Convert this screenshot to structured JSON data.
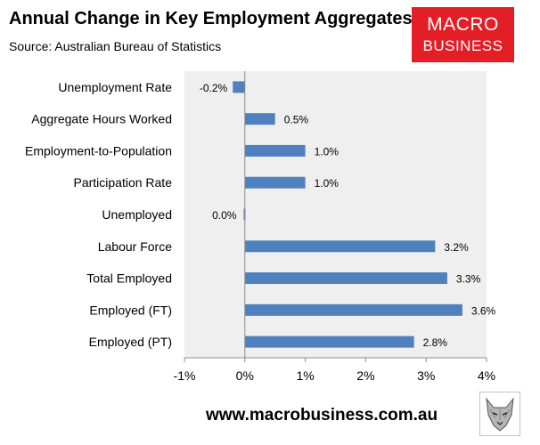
{
  "header": {
    "title": "Annual Change in Key Employment Aggregates",
    "subtitle": "Source: Australian Bureau of Statistics"
  },
  "logo": {
    "line1": "MACRO",
    "line2": "BUSINESS",
    "color": "#e41e26"
  },
  "footer": {
    "url": "www.macrobusiness.com.au"
  },
  "chart_data": {
    "type": "bar",
    "orientation": "horizontal",
    "categories": [
      "Unemployment Rate",
      "Aggregate Hours Worked",
      "Employment-to-Population",
      "Participation Rate",
      "Unemployed",
      "Labour Force",
      "Total Employed",
      "Employed (FT)",
      "Employed (PT)"
    ],
    "values": [
      -0.2,
      0.5,
      1.0,
      1.0,
      -0.02,
      3.15,
      3.35,
      3.6,
      2.8
    ],
    "data_labels": [
      "-0.2%",
      "0.5%",
      "1.0%",
      "1.0%",
      "0.0%",
      "3.2%",
      "3.3%",
      "3.6%",
      "2.8%"
    ],
    "xlim": [
      -1,
      4
    ],
    "x_ticks": [
      -1,
      0,
      1,
      2,
      3,
      4
    ],
    "x_tick_labels": [
      "-1%",
      "0%",
      "1%",
      "2%",
      "3%",
      "4%"
    ],
    "bar_color": "#4f81bd",
    "plot_background": "#efefef",
    "grid": false,
    "legend": "none"
  }
}
